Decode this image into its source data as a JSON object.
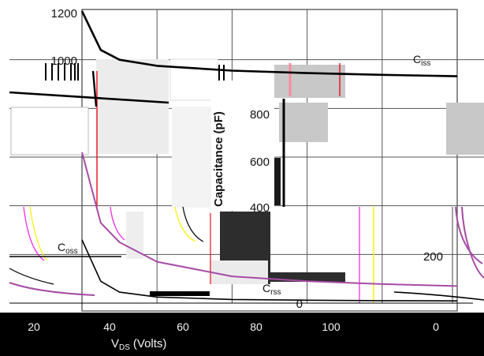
{
  "chart_data": {
    "type": "line",
    "title": "",
    "xlabel": "V",
    "xlabel_sub": "DS",
    "xlabel_unit": "(Volts)",
    "ylabel": "Capacitance (pF)",
    "x_ticks": [
      "20",
      "40",
      "60",
      "80",
      "100",
      "0"
    ],
    "y_ticks_main": [
      "1200",
      "1000",
      "800"
    ],
    "y_ticks_right": [
      "600",
      "400",
      "200",
      "0"
    ],
    "series": [
      {
        "name": "Ciss",
        "label_text": "C",
        "label_sub": "iss",
        "x": [
          0,
          5,
          10,
          20,
          40,
          60,
          80,
          100
        ],
        "y": [
          1200,
          1040,
          1000,
          975,
          955,
          945,
          938,
          932
        ]
      },
      {
        "name": "Coss",
        "label_text": "C",
        "label_sub": "oss",
        "x": [
          0,
          5,
          10,
          20,
          40,
          60,
          80,
          100
        ],
        "y": [
          620,
          330,
          250,
          170,
          110,
          90,
          78,
          70
        ]
      },
      {
        "name": "Crss",
        "label_text": "C",
        "label_sub": "rss",
        "x": [
          0,
          5,
          10,
          20,
          40,
          60,
          80,
          100
        ],
        "y": [
          260,
          90,
          45,
          25,
          15,
          12,
          10,
          9
        ]
      }
    ],
    "ylim": [
      0,
      1200
    ],
    "xlim": [
      0,
      100
    ],
    "grid": true,
    "colors": {
      "ciss": "#000000",
      "coss_alt": "#a64ca6",
      "accent_red": "#e8101c",
      "accent_pink": "#ff8a9a",
      "accent_yellow": "#f7f200",
      "accent_magenta": "#f020e0",
      "gray_block": "#c8c8c8",
      "dark_block": "#2d2d2d",
      "band": "#000000"
    }
  }
}
